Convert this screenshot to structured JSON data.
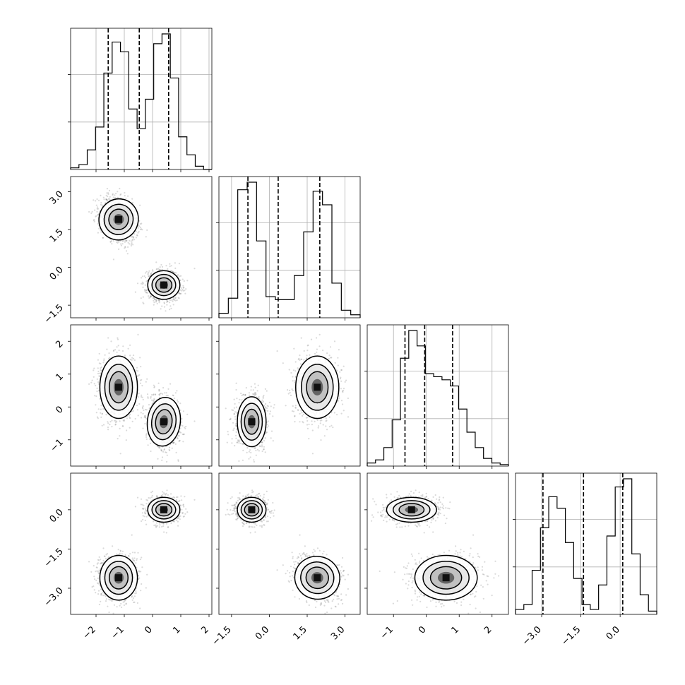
{
  "chart_data": {
    "type": "corner",
    "variables": 4,
    "colors": {
      "ink": "#000000",
      "scatter": "#555555",
      "grid": "#b0b0b0",
      "background": "#ffffff"
    },
    "axes": [
      {
        "index": 0,
        "range": [
          -2.9,
          2.1
        ],
        "ticks": [
          -2,
          -1,
          0,
          1,
          2
        ],
        "tick_labels": [
          "−2",
          "−1",
          "0",
          "1",
          "2"
        ]
      },
      {
        "index": 1,
        "range": [
          -2.0,
          3.6
        ],
        "ticks": [
          -1.5,
          0.0,
          1.5,
          3.0
        ],
        "tick_labels": [
          "−1.5",
          "0.0",
          "1.5",
          "3.0"
        ]
      },
      {
        "index": 2,
        "range": [
          -1.8,
          2.5
        ],
        "ticks": [
          -1,
          0,
          1,
          2
        ],
        "tick_labels": [
          "−1",
          "0",
          "1",
          "2"
        ]
      },
      {
        "index": 3,
        "range": [
          -4.0,
          1.4
        ],
        "ticks": [
          -3.0,
          -1.5,
          0.0
        ],
        "tick_labels": [
          "−3.0",
          "−1.5",
          "0.0"
        ]
      }
    ],
    "histograms": [
      {
        "variable": 0,
        "quantiles": [
          -1.57,
          -0.47,
          0.57
        ],
        "counts": [
          1,
          3,
          12,
          26,
          59,
          78,
          72,
          37,
          25,
          43,
          77,
          83,
          56,
          20,
          9,
          2,
          0
        ]
      },
      {
        "variable": 1,
        "quantiles": [
          -0.85,
          0.35,
          2.0
        ],
        "counts": [
          3,
          13,
          85,
          90,
          51,
          14,
          12,
          12,
          28,
          57,
          84,
          75,
          23,
          5,
          2
        ]
      },
      {
        "variable": 2,
        "quantiles": [
          -0.65,
          -0.05,
          0.8
        ],
        "counts": [
          2,
          4,
          12,
          30,
          70,
          88,
          78,
          60,
          58,
          56,
          52,
          37,
          22,
          12,
          5,
          2,
          1
        ]
      },
      {
        "variable": 3,
        "quantiles": [
          -2.95,
          -1.4,
          0.1
        ],
        "counts": [
          3,
          6,
          27,
          53,
          72,
          65,
          44,
          22,
          6,
          3,
          18,
          48,
          78,
          83,
          37,
          12,
          2
        ]
      }
    ],
    "clusters": [
      {
        "means": [
          -1.2,
          1.9,
          0.6,
          -2.6
        ],
        "sd": [
          0.35,
          0.45,
          0.5,
          0.45
        ],
        "corr": [
          -0.3,
          0.0,
          -0.3
        ]
      },
      {
        "means": [
          0.4,
          -0.7,
          -0.45,
          0.0
        ],
        "sd": [
          0.3,
          0.3,
          0.4,
          0.25
        ],
        "corr": [
          0.0,
          -0.15,
          0.0
        ]
      }
    ],
    "contour_levels": [
      "39%",
      "86%",
      "99%"
    ]
  }
}
